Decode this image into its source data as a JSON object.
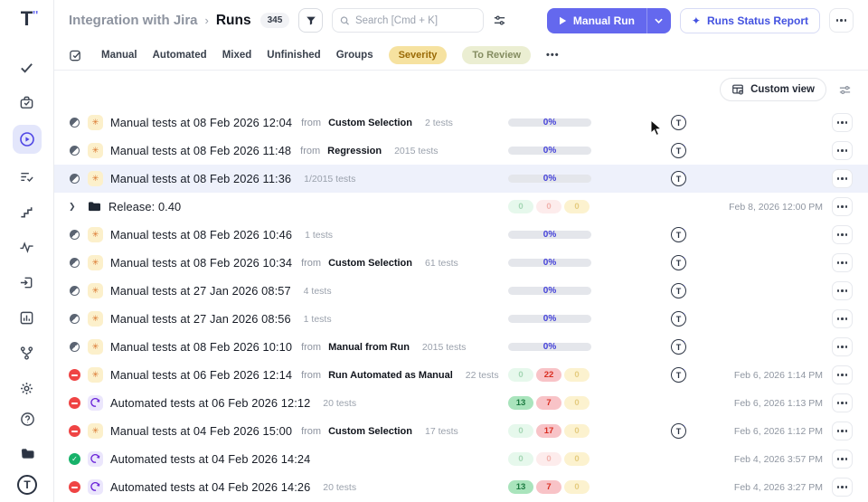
{
  "colors": {
    "accent": "#6366f1",
    "progress_text": "#4340d9",
    "severity_bg": "#f6e2a0",
    "review_bg": "#ebeed2"
  },
  "sidebar": {
    "logo": "T",
    "items": [
      {
        "name": "tests",
        "icon": "check-icon"
      },
      {
        "name": "suites",
        "icon": "briefcase-check-icon"
      },
      {
        "name": "runs",
        "icon": "play-circle-icon",
        "active": true
      },
      {
        "name": "plans",
        "icon": "list-check-icon"
      },
      {
        "name": "milestones",
        "icon": "steps-icon"
      },
      {
        "name": "pulse",
        "icon": "activity-icon"
      },
      {
        "name": "import",
        "icon": "import-box-icon"
      },
      {
        "name": "analytics",
        "icon": "report-chart-icon"
      },
      {
        "name": "branches",
        "icon": "branch-icon"
      },
      {
        "name": "settings",
        "icon": "gear-icon"
      }
    ],
    "bottom": [
      {
        "name": "help",
        "icon": "help-circle-icon"
      },
      {
        "name": "docs",
        "icon": "folder-dark-icon"
      },
      {
        "name": "account",
        "icon": "t-avatar-icon",
        "label": "T"
      }
    ]
  },
  "header": {
    "breadcrumb_project": "Integration with Jira",
    "breadcrumb_sep": "›",
    "breadcrumb_page": "Runs",
    "count_badge": "345",
    "search_placeholder": "Search [Cmd + K]",
    "manual_run_label": "Manual Run",
    "runs_status_report_label": "Runs Status Report",
    "sparkle_glyph": "✦"
  },
  "filters": {
    "tabs": [
      "Manual",
      "Automated",
      "Mixed",
      "Unfinished",
      "Groups"
    ],
    "chips": [
      {
        "label": "Severity",
        "kind": "severity"
      },
      {
        "label": "To Review",
        "kind": "review"
      }
    ],
    "more_label": "•••"
  },
  "toolbar": {
    "custom_view_label": "Custom view"
  },
  "rows": [
    {
      "status": "progress",
      "type": "manual",
      "title": "Manual tests at 08 Feb 2026 12:04",
      "from": "from",
      "source": "Custom Selection",
      "tests": "2 tests",
      "progress": "0%",
      "avatar": true,
      "date": ""
    },
    {
      "status": "progress",
      "type": "manual",
      "title": "Manual tests at 08 Feb 2026 11:48",
      "from": "from",
      "source": "Regression",
      "tests": "2015 tests",
      "progress": "0%",
      "avatar": true,
      "date": ""
    },
    {
      "status": "progress",
      "type": "manual",
      "title": "Manual tests at 08 Feb 2026 11:36",
      "tests": "1/2015 tests",
      "progress": "0%",
      "avatar": true,
      "date": "",
      "highlighted": true
    },
    {
      "type": "folder",
      "title": "Release: 0.40",
      "counts": [
        {
          "v": "0",
          "k": "pass",
          "on": false
        },
        {
          "v": "0",
          "k": "fail",
          "on": false
        },
        {
          "v": "0",
          "k": "skip",
          "on": false
        }
      ],
      "date": "Feb 8, 2026 12:00 PM"
    },
    {
      "status": "progress",
      "type": "manual",
      "title": "Manual tests at 08 Feb 2026 10:46",
      "tests": "1 tests",
      "progress": "0%",
      "avatar": true,
      "date": ""
    },
    {
      "status": "progress",
      "type": "manual",
      "title": "Manual tests at 08 Feb 2026 10:34",
      "from": "from",
      "source": "Custom Selection",
      "tests": "61 tests",
      "progress": "0%",
      "avatar": true,
      "date": ""
    },
    {
      "status": "progress",
      "type": "manual",
      "title": "Manual tests at 27 Jan 2026 08:57",
      "tests": "4 tests",
      "progress": "0%",
      "avatar": true,
      "date": ""
    },
    {
      "status": "progress",
      "type": "manual",
      "title": "Manual tests at 27 Jan 2026 08:56",
      "tests": "1 tests",
      "progress": "0%",
      "avatar": true,
      "date": ""
    },
    {
      "status": "progress",
      "type": "manual",
      "title": "Manual tests at 08 Feb 2026 10:10",
      "from": "from",
      "source": "Manual from Run",
      "tests": "2015 tests",
      "progress": "0%",
      "avatar": true,
      "date": ""
    },
    {
      "status": "failed",
      "type": "manual",
      "title": "Manual tests at 06 Feb 2026 12:14",
      "from": "from",
      "source": "Run Automated as Manual",
      "tests": "22 tests",
      "counts": [
        {
          "v": "0",
          "k": "pass",
          "on": false
        },
        {
          "v": "22",
          "k": "fail",
          "on": true
        },
        {
          "v": "0",
          "k": "skip",
          "on": false
        }
      ],
      "avatar": true,
      "date": "Feb 6, 2026 1:14 PM"
    },
    {
      "status": "failed",
      "type": "auto",
      "title": "Automated tests at 06 Feb 2026 12:12",
      "tests": "20 tests",
      "counts": [
        {
          "v": "13",
          "k": "pass",
          "on": true
        },
        {
          "v": "7",
          "k": "fail",
          "on": true
        },
        {
          "v": "0",
          "k": "skip",
          "on": false
        }
      ],
      "avatar": false,
      "date": "Feb 6, 2026 1:13 PM"
    },
    {
      "status": "failed",
      "type": "manual",
      "title": "Manual tests at 04 Feb 2026 15:00",
      "from": "from",
      "source": "Custom Selection",
      "tests": "17 tests",
      "counts": [
        {
          "v": "0",
          "k": "pass",
          "on": false
        },
        {
          "v": "17",
          "k": "fail",
          "on": true
        },
        {
          "v": "0",
          "k": "skip",
          "on": false
        }
      ],
      "avatar": true,
      "date": "Feb 6, 2026 1:12 PM"
    },
    {
      "status": "passed",
      "type": "auto",
      "title": "Automated tests at 04 Feb 2026 14:24",
      "counts": [
        {
          "v": "0",
          "k": "pass",
          "on": false
        },
        {
          "v": "0",
          "k": "fail",
          "on": false
        },
        {
          "v": "0",
          "k": "skip",
          "on": false
        }
      ],
      "avatar": false,
      "date": "Feb 4, 2026 3:57 PM"
    },
    {
      "status": "failed",
      "type": "auto",
      "title": "Automated tests at 04 Feb 2026 14:26",
      "tests": "20 tests",
      "counts": [
        {
          "v": "13",
          "k": "pass",
          "on": true
        },
        {
          "v": "7",
          "k": "fail",
          "on": true
        },
        {
          "v": "0",
          "k": "skip",
          "on": false
        }
      ],
      "avatar": false,
      "date": "Feb 4, 2026 3:27 PM"
    }
  ],
  "run_avatar_label": "T"
}
